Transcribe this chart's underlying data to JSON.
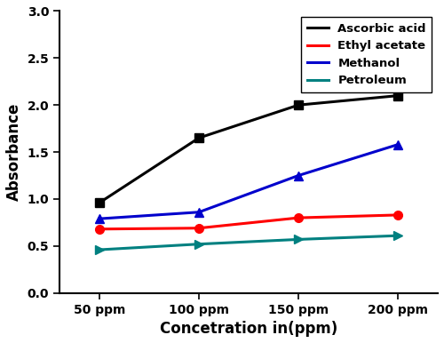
{
  "x_labels": [
    "50 ppm",
    "100 ppm",
    "150 ppm",
    "200 ppm"
  ],
  "x_values": [
    1,
    2,
    3,
    4
  ],
  "series": [
    {
      "label": "Ascorbic acid",
      "values": [
        0.96,
        1.65,
        2.0,
        2.1
      ],
      "color": "#000000",
      "marker": "s",
      "linewidth": 2.2
    },
    {
      "label": "Ethyl acetate",
      "values": [
        0.68,
        0.69,
        0.8,
        0.83
      ],
      "color": "#ff0000",
      "marker": "o",
      "linewidth": 2.2
    },
    {
      "label": "Methanol",
      "values": [
        0.79,
        0.86,
        1.25,
        1.58
      ],
      "color": "#0000cc",
      "marker": "^",
      "linewidth": 2.2
    },
    {
      "label": "Petroleum",
      "values": [
        0.46,
        0.52,
        0.57,
        0.61
      ],
      "color": "#008080",
      "marker": ">",
      "linewidth": 2.2
    }
  ],
  "xlabel": "Concetration in(ppm)",
  "ylabel": "Absorbance",
  "ylim": [
    0.0,
    3.0
  ],
  "yticks": [
    0.0,
    0.5,
    1.0,
    1.5,
    2.0,
    2.5,
    3.0
  ],
  "legend_loc": "upper right",
  "legend_fontsize": 9.5,
  "axis_label_fontsize": 12,
  "tick_fontsize": 10,
  "marker_size": 7,
  "figure_width": 5.0,
  "figure_height": 3.86,
  "dpi": 100,
  "bg_color": "#ffffff"
}
